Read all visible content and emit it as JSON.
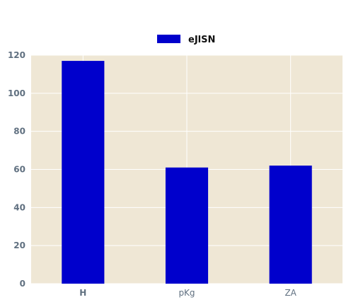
{
  "chart_data": {
    "type": "bar",
    "categories": [
      "H",
      "pKg",
      "ZA"
    ],
    "series": [
      {
        "name": "eJlSN",
        "values": [
          117,
          61,
          62
        ],
        "color": "#0000cc"
      }
    ],
    "ylim": [
      0,
      120
    ],
    "yticks": [
      "0",
      "20",
      "40",
      "60",
      "80",
      "100",
      "120"
    ],
    "grid": true,
    "legend_position": "top-center",
    "plot_background": "#efe7d5",
    "grid_color": "#ffffff"
  }
}
